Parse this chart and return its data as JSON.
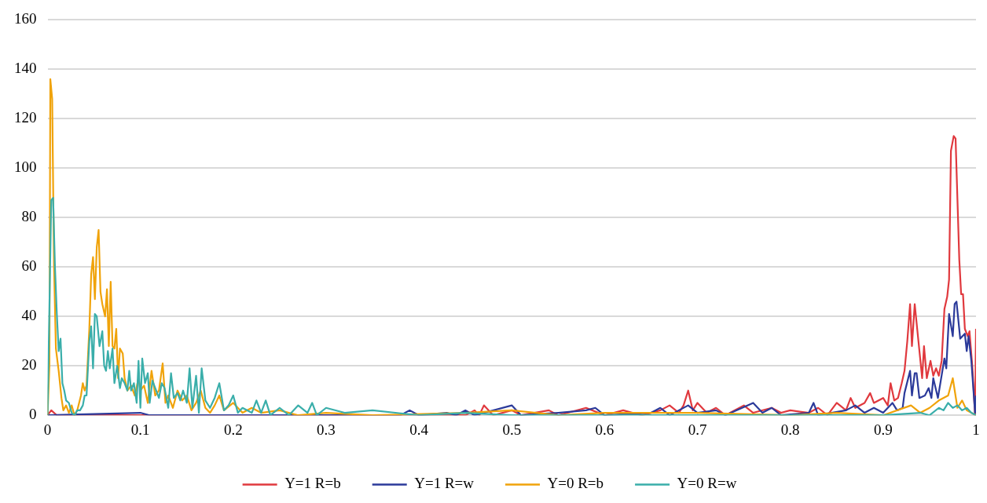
{
  "chart_data": {
    "type": "line",
    "xlim": [
      0,
      1
    ],
    "xticks": [
      0,
      0.1,
      0.2,
      0.3,
      0.4,
      0.5,
      0.6,
      0.7,
      0.8,
      0.9,
      1
    ],
    "ylim": [
      0,
      160
    ],
    "yticks": [
      0,
      20,
      40,
      60,
      80,
      100,
      120,
      140,
      160
    ],
    "grid": "y",
    "legend": "bottom",
    "marker": "none",
    "line_style": "solid",
    "series": [
      {
        "name": "Y=1 R=b",
        "color": "#e0393e",
        "x": [
          0,
          0.004,
          0.01,
          0.08,
          0.45,
          0.46,
          0.465,
          0.47,
          0.48,
          0.5,
          0.51,
          0.54,
          0.55,
          0.58,
          0.6,
          0.62,
          0.64,
          0.66,
          0.67,
          0.68,
          0.685,
          0.69,
          0.695,
          0.7,
          0.71,
          0.72,
          0.73,
          0.75,
          0.76,
          0.78,
          0.79,
          0.8,
          0.82,
          0.83,
          0.84,
          0.85,
          0.86,
          0.865,
          0.87,
          0.88,
          0.886,
          0.89,
          0.9,
          0.905,
          0.908,
          0.912,
          0.916,
          0.92,
          0.923,
          0.926,
          0.929,
          0.931,
          0.934,
          0.938,
          0.942,
          0.944,
          0.947,
          0.951,
          0.954,
          0.957,
          0.96,
          0.963,
          0.966,
          0.969,
          0.971,
          0.973,
          0.976,
          0.978,
          0.982,
          0.984,
          0.986,
          0.988,
          0.991,
          0.993,
          0.996,
          0.999,
          1
        ],
        "values": [
          0,
          2,
          0,
          0,
          0,
          2,
          0,
          4,
          0,
          2,
          0,
          2,
          0,
          3,
          0,
          2,
          0,
          2,
          4,
          1,
          4,
          10,
          2,
          5,
          1,
          3,
          0,
          4,
          1,
          3,
          1,
          2,
          1,
          3,
          0,
          5,
          2,
          7,
          3,
          5,
          9,
          5,
          7,
          4,
          13,
          6,
          7,
          13,
          18,
          30,
          45,
          28,
          45,
          30,
          15,
          28,
          15,
          22,
          16,
          19,
          16,
          22,
          43,
          48,
          55,
          107,
          113,
          112,
          63,
          49,
          49,
          35,
          32,
          34,
          20,
          0,
          35
        ]
      },
      {
        "name": "Y=1 R=w",
        "color": "#2b3a9a",
        "x": [
          0,
          0.1,
          0.11,
          0.38,
          0.39,
          0.4,
          0.43,
          0.44,
          0.45,
          0.46,
          0.5,
          0.51,
          0.55,
          0.58,
          0.59,
          0.6,
          0.65,
          0.66,
          0.67,
          0.68,
          0.69,
          0.7,
          0.72,
          0.73,
          0.76,
          0.77,
          0.78,
          0.79,
          0.82,
          0.825,
          0.83,
          0.86,
          0.87,
          0.88,
          0.89,
          0.9,
          0.91,
          0.915,
          0.921,
          0.923,
          0.929,
          0.931,
          0.934,
          0.936,
          0.939,
          0.945,
          0.949,
          0.952,
          0.954,
          0.959,
          0.966,
          0.968,
          0.971,
          0.975,
          0.977,
          0.979,
          0.983,
          0.988,
          0.99,
          0.992,
          0.995,
          0.999,
          1
        ],
        "values": [
          0,
          1,
          0,
          0,
          2,
          0,
          1,
          0,
          2,
          0,
          4,
          0,
          1,
          2,
          3,
          0,
          1,
          3,
          0,
          2,
          4,
          1,
          2,
          0,
          5,
          1,
          3,
          0,
          1,
          5,
          0,
          2,
          4,
          1,
          3,
          1,
          5,
          2,
          3,
          9,
          18,
          8,
          17,
          17,
          7,
          8,
          11,
          7,
          15,
          7,
          23,
          19,
          41,
          32,
          45,
          46,
          31,
          33,
          26,
          32,
          22,
          1,
          8
        ]
      },
      {
        "name": "Y=0 R=b",
        "color": "#f0a30a",
        "x": [
          0,
          0.002,
          0.003,
          0.005,
          0.007,
          0.009,
          0.012,
          0.015,
          0.017,
          0.02,
          0.023,
          0.026,
          0.029,
          0.032,
          0.036,
          0.038,
          0.04,
          0.042,
          0.045,
          0.047,
          0.049,
          0.051,
          0.053,
          0.055,
          0.057,
          0.059,
          0.062,
          0.064,
          0.066,
          0.068,
          0.07,
          0.072,
          0.074,
          0.076,
          0.078,
          0.081,
          0.083,
          0.086,
          0.09,
          0.094,
          0.098,
          0.1,
          0.104,
          0.108,
          0.112,
          0.116,
          0.12,
          0.124,
          0.127,
          0.13,
          0.135,
          0.14,
          0.145,
          0.15,
          0.155,
          0.16,
          0.165,
          0.17,
          0.175,
          0.18,
          0.185,
          0.19,
          0.2,
          0.21,
          0.22,
          0.23,
          0.25,
          0.27,
          0.3,
          0.35,
          0.45,
          0.5,
          0.55,
          0.6,
          0.7,
          0.8,
          0.85,
          0.9,
          0.93,
          0.94,
          0.95,
          0.96,
          0.97,
          0.975,
          0.98,
          0.985,
          0.99,
          1
        ],
        "values": [
          0,
          20,
          136,
          128,
          60,
          27,
          18,
          7,
          2,
          4,
          1,
          4,
          0,
          2,
          8,
          13,
          10,
          12,
          35,
          57,
          64,
          47,
          68,
          75,
          50,
          45,
          40,
          51,
          28,
          54,
          28,
          27,
          35,
          15,
          27,
          25,
          15,
          10,
          12,
          8,
          15,
          10,
          12,
          5,
          18,
          8,
          10,
          21,
          5,
          8,
          3,
          10,
          6,
          8,
          2,
          5,
          10,
          3,
          1,
          4,
          8,
          2,
          5,
          1,
          3,
          1,
          2,
          0,
          1,
          0,
          1,
          2,
          0,
          1,
          1,
          0,
          1,
          0,
          4,
          1,
          3,
          6,
          8,
          15,
          3,
          6,
          2,
          0
        ]
      },
      {
        "name": "Y=0 R=w",
        "color": "#3aaeaa",
        "x": [
          0,
          0.004,
          0.006,
          0.008,
          0.01,
          0.012,
          0.014,
          0.016,
          0.018,
          0.02,
          0.023,
          0.026,
          0.029,
          0.032,
          0.035,
          0.038,
          0.04,
          0.042,
          0.045,
          0.047,
          0.049,
          0.051,
          0.053,
          0.056,
          0.059,
          0.061,
          0.063,
          0.065,
          0.067,
          0.07,
          0.072,
          0.075,
          0.078,
          0.08,
          0.083,
          0.086,
          0.088,
          0.09,
          0.093,
          0.096,
          0.098,
          0.1,
          0.102,
          0.105,
          0.108,
          0.11,
          0.113,
          0.116,
          0.12,
          0.123,
          0.126,
          0.13,
          0.133,
          0.136,
          0.14,
          0.143,
          0.146,
          0.15,
          0.153,
          0.156,
          0.16,
          0.163,
          0.166,
          0.17,
          0.175,
          0.18,
          0.185,
          0.19,
          0.195,
          0.2,
          0.205,
          0.21,
          0.22,
          0.225,
          0.23,
          0.235,
          0.24,
          0.25,
          0.26,
          0.27,
          0.28,
          0.285,
          0.29,
          0.3,
          0.32,
          0.35,
          0.4,
          0.45,
          0.5,
          0.6,
          0.8,
          0.9,
          0.94,
          0.95,
          0.96,
          0.965,
          0.97,
          0.975,
          0.98,
          0.985,
          0.99,
          0.995,
          1
        ],
        "values": [
          0,
          87,
          88,
          60,
          41,
          26,
          31,
          13,
          10,
          6,
          5,
          1,
          0,
          2,
          2,
          4,
          8,
          8,
          30,
          36,
          19,
          41,
          40,
          28,
          34,
          20,
          18,
          26,
          19,
          27,
          13,
          20,
          11,
          15,
          13,
          10,
          18,
          10,
          13,
          5,
          22,
          3,
          23,
          13,
          17,
          5,
          14,
          11,
          7,
          13,
          11,
          3,
          17,
          7,
          9,
          6,
          10,
          5,
          19,
          3,
          16,
          1,
          19,
          6,
          3,
          7,
          13,
          2,
          4,
          8,
          1,
          3,
          1,
          6,
          1,
          6,
          0,
          3,
          0,
          4,
          1,
          5,
          0,
          3,
          1,
          2,
          0,
          1,
          0,
          0,
          0,
          0,
          1,
          0,
          3,
          2,
          5,
          3,
          4,
          2,
          3,
          1,
          0
        ]
      }
    ]
  }
}
